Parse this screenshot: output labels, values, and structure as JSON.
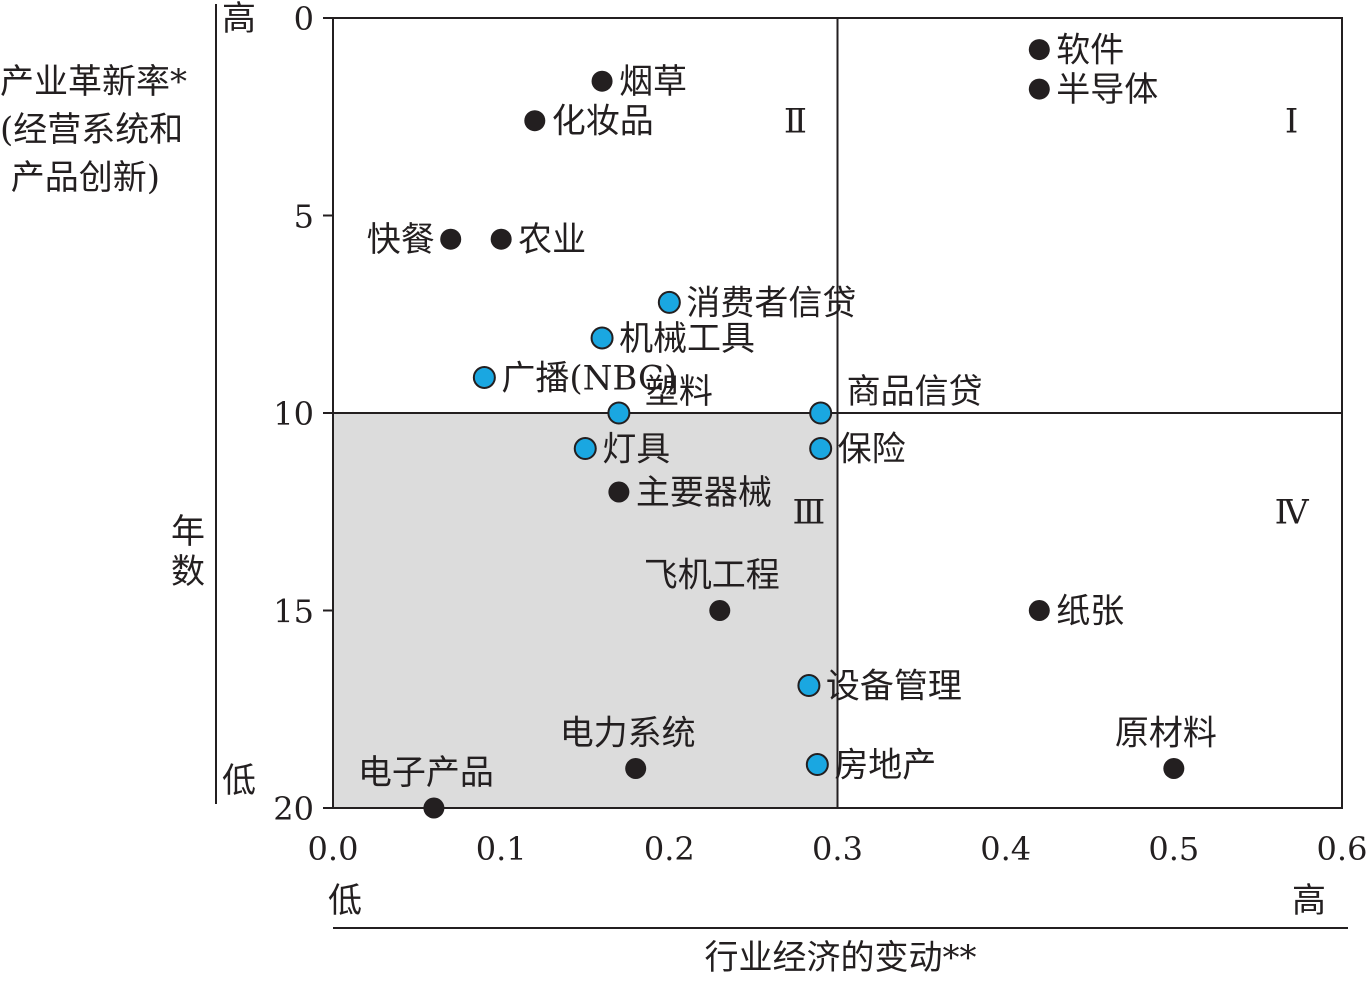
{
  "chart_data": {
    "type": "scatter",
    "title": "",
    "ylabel": "产业革新率*\n(经营系统和\n 产品创新)",
    "y_unit": "年数",
    "xlabel": "行业经济的变动**",
    "xlim": [
      0,
      0.6
    ],
    "ylim": [
      0,
      20
    ],
    "y_inverted": true,
    "x_ticks": [
      "0.0",
      "0.1",
      "0.2",
      "0.3",
      "0.4",
      "0.5",
      "0.6"
    ],
    "y_ticks": [
      "0",
      "5",
      "10",
      "15",
      "20"
    ],
    "y_high_label": "高",
    "y_low_label": "低",
    "x_low_label": "低",
    "x_high_label": "高",
    "quadrant_dividers": {
      "x": 0.3,
      "y": 10
    },
    "shaded_quadrant": "Ⅲ",
    "quadrants": [
      {
        "id": "I",
        "label": "Ⅰ",
        "x": 0.57,
        "y": 2.9
      },
      {
        "id": "II",
        "label": "Ⅱ",
        "x": 0.275,
        "y": 2.9
      },
      {
        "id": "III",
        "label": "Ⅲ",
        "x": 0.283,
        "y": 12.8
      },
      {
        "id": "IV",
        "label": "Ⅳ",
        "x": 0.57,
        "y": 12.8
      }
    ],
    "colors": {
      "dark": "#231f20",
      "blue": "#1aa7e1",
      "shade": "#dcdcdc",
      "axis": "#231f20"
    },
    "series": [
      {
        "marker": "dark",
        "points": [
          {
            "label": "软件",
            "x": 0.42,
            "y": 0.8,
            "label_pos": "right"
          },
          {
            "label": "半导体",
            "x": 0.42,
            "y": 1.8,
            "label_pos": "right"
          },
          {
            "label": "烟草",
            "x": 0.16,
            "y": 1.6,
            "label_pos": "right"
          },
          {
            "label": "化妆品",
            "x": 0.12,
            "y": 2.6,
            "label_pos": "right"
          },
          {
            "label": "快餐",
            "x": 0.07,
            "y": 5.6,
            "label_pos": "left"
          },
          {
            "label": "农业",
            "x": 0.1,
            "y": 5.6,
            "label_pos": "right"
          },
          {
            "label": "主要器械",
            "x": 0.17,
            "y": 12.0,
            "label_pos": "right"
          },
          {
            "label": "飞机工程",
            "x": 0.23,
            "y": 15.0,
            "label_pos": "above"
          },
          {
            "label": "纸张",
            "x": 0.42,
            "y": 15.0,
            "label_pos": "right"
          },
          {
            "label": "原材料",
            "x": 0.5,
            "y": 19.0,
            "label_pos": "above"
          },
          {
            "label": "电力系统",
            "x": 0.18,
            "y": 19.0,
            "label_pos": "above"
          },
          {
            "label": "电子产品",
            "x": 0.06,
            "y": 20.0,
            "label_pos": "above"
          }
        ]
      },
      {
        "marker": "blue",
        "points": [
          {
            "label": "消费者信贷",
            "x": 0.2,
            "y": 7.2,
            "label_pos": "right"
          },
          {
            "label": "机械工具",
            "x": 0.16,
            "y": 8.1,
            "label_pos": "right"
          },
          {
            "label": "广播(NBC)",
            "x": 0.09,
            "y": 9.1,
            "label_pos": "right"
          },
          {
            "label": "塑料",
            "x": 0.17,
            "y": 10.0,
            "label_pos": "right-up"
          },
          {
            "label": "商品信贷",
            "x": 0.29,
            "y": 10.0,
            "label_pos": "right-up"
          },
          {
            "label": "灯具",
            "x": 0.15,
            "y": 10.9,
            "label_pos": "right"
          },
          {
            "label": "保险",
            "x": 0.29,
            "y": 10.9,
            "label_pos": "right"
          },
          {
            "label": "设备管理",
            "x": 0.283,
            "y": 16.9,
            "label_pos": "right"
          },
          {
            "label": "房地产",
            "x": 0.288,
            "y": 18.9,
            "label_pos": "right"
          }
        ]
      }
    ]
  }
}
